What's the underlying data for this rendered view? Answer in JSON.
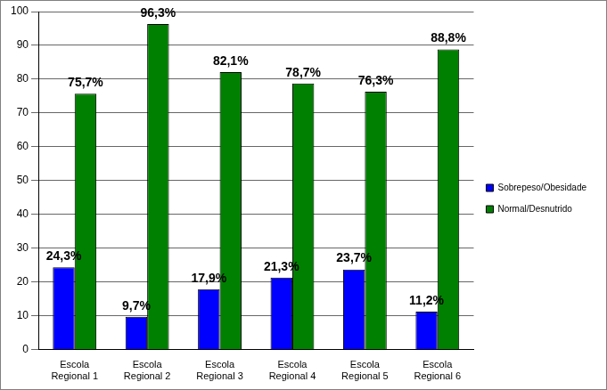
{
  "chart_data": {
    "type": "bar",
    "categories": [
      "Escola Regional 1",
      "Escola Regional 2",
      "Escola Regional 3",
      "Escola Regional 4",
      "Escola Regional 5",
      "Escola Regional 6"
    ],
    "series": [
      {
        "name": "Sobrepeso/Obesidade",
        "color": "#0000ff",
        "values": [
          24.3,
          9.7,
          17.9,
          21.3,
          23.7,
          11.2
        ],
        "value_labels": [
          "24,3%",
          "9,7%",
          "17,9%",
          "21,3%",
          "23,7%",
          "11,2%"
        ]
      },
      {
        "name": "Normal/Desnutrido",
        "color": "#008000",
        "values": [
          75.7,
          96.3,
          82.1,
          78.7,
          76.3,
          88.8
        ],
        "value_labels": [
          "75,7%",
          "96,3%",
          "82,1%",
          "78,7%",
          "76,3%",
          "88,8%"
        ]
      }
    ],
    "ylim": [
      0,
      100
    ],
    "yticks": [
      0,
      10,
      20,
      30,
      40,
      50,
      60,
      70,
      80,
      90,
      100
    ],
    "grid": true,
    "legend": "right",
    "data_labels": true
  }
}
